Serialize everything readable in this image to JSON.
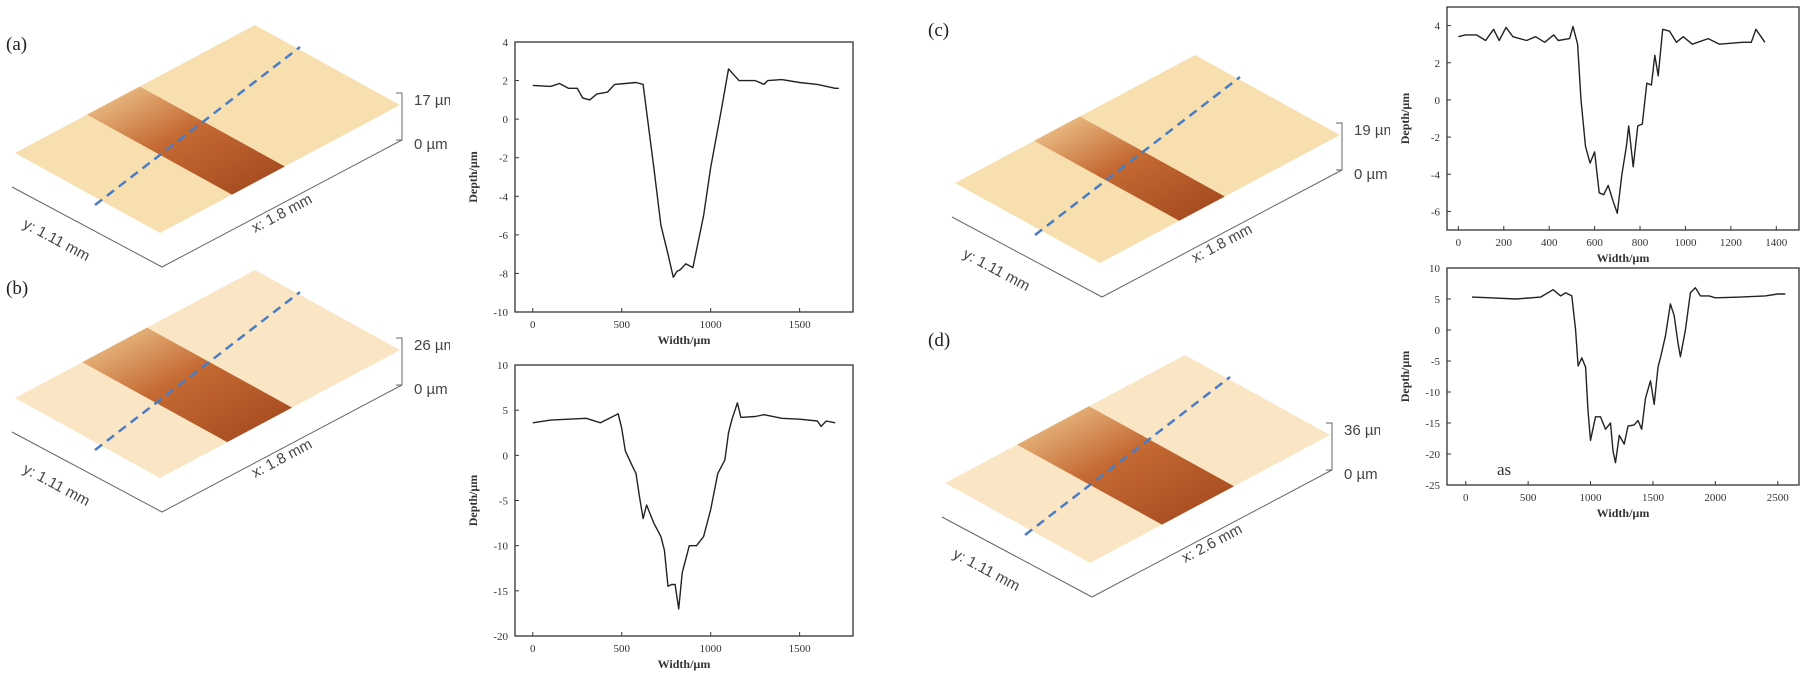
{
  "panels": [
    {
      "label": "(a)",
      "z_max": "17 µm",
      "z_min": "0 µm",
      "x_axis": "x: 1.8 mm",
      "y_axis": "y: 1.11 mm"
    },
    {
      "label": "(b)",
      "z_max": "26 µm",
      "z_min": "0 µm",
      "x_axis": "x: 1.8 mm",
      "y_axis": "y: 1.11 mm"
    },
    {
      "label": "(c)",
      "z_max": "19 µm",
      "z_min": "0 µm",
      "x_axis": "x: 1.8 mm",
      "y_axis": "y: 1.11 mm"
    },
    {
      "label": "(d)",
      "z_max": "36 µm",
      "z_min": "0 µm",
      "x_axis": "x: 2.6 mm",
      "y_axis": "y: 1.11 mm"
    }
  ],
  "colors": {
    "surface_light": "#f8dfb0",
    "groove_dark": "#a0451c",
    "profile_line": "#4a7cc4",
    "trace": "#222222"
  },
  "chart_data": [
    {
      "type": "line",
      "panel": "(a)",
      "xlabel": "Width/µm",
      "ylabel": "Depth/µm",
      "xlim": [
        -100,
        1800
      ],
      "ylim": [
        -10,
        4
      ],
      "xticks": [
        0,
        500,
        1000,
        1500
      ],
      "yticks": [
        -10,
        -8,
        -6,
        -4,
        -2,
        0,
        2,
        4
      ],
      "x": [
        0,
        100,
        150,
        200,
        250,
        280,
        320,
        360,
        420,
        460,
        520,
        580,
        620,
        680,
        720,
        760,
        790,
        810,
        830,
        860,
        900,
        960,
        1000,
        1060,
        1100,
        1130,
        1160,
        1250,
        1300,
        1320,
        1400,
        1500,
        1600,
        1700,
        1720
      ],
      "y": [
        1.75,
        1.7,
        1.85,
        1.6,
        1.6,
        1.1,
        1.0,
        1.3,
        1.4,
        1.8,
        1.85,
        1.9,
        1.8,
        -2.5,
        -5.5,
        -7,
        -8.2,
        -7.9,
        -7.8,
        -7.5,
        -7.7,
        -5,
        -2.5,
        0.5,
        2.6,
        2.3,
        2.0,
        2.0,
        1.8,
        2.0,
        2.05,
        1.9,
        1.8,
        1.6,
        1.6
      ]
    },
    {
      "type": "line",
      "panel": "(b)",
      "xlabel": "Width/µm",
      "ylabel": "Depth/µm",
      "xlim": [
        -100,
        1800
      ],
      "ylim": [
        -20,
        10
      ],
      "xticks": [
        0,
        500,
        1000,
        1500
      ],
      "yticks": [
        -20,
        -15,
        -10,
        -5,
        0,
        5,
        10
      ],
      "x": [
        0,
        100,
        200,
        300,
        380,
        460,
        480,
        500,
        520,
        560,
        580,
        600,
        620,
        640,
        680,
        720,
        740,
        760,
        780,
        800,
        820,
        840,
        880,
        920,
        960,
        1000,
        1040,
        1080,
        1100,
        1120,
        1150,
        1170,
        1250,
        1300,
        1400,
        1500,
        1600,
        1620,
        1650,
        1700
      ],
      "y": [
        3.6,
        3.9,
        4.0,
        4.1,
        3.6,
        4.4,
        4.6,
        3,
        0.5,
        -1.2,
        -2,
        -4.6,
        -7,
        -5.5,
        -7.5,
        -9,
        -10.5,
        -14.5,
        -14.3,
        -14.3,
        -17,
        -13,
        -10,
        -10,
        -9,
        -6,
        -2,
        -0.5,
        2.5,
        4,
        5.8,
        4.2,
        4.3,
        4.5,
        4.1,
        4.0,
        3.8,
        3.2,
        3.8,
        3.6
      ]
    },
    {
      "type": "line",
      "panel": "(c)",
      "xlabel": "Width/µm",
      "ylabel": "Depth/µm",
      "xlim": [
        -50,
        1500
      ],
      "ylim": [
        -7,
        5
      ],
      "xticks": [
        0,
        200,
        400,
        600,
        800,
        1000,
        1200,
        1400
      ],
      "yticks": [
        -6,
        -4,
        -2,
        0,
        2,
        4
      ],
      "x": [
        0,
        30,
        80,
        120,
        155,
        180,
        210,
        240,
        300,
        340,
        380,
        420,
        440,
        490,
        505,
        525,
        540,
        560,
        580,
        600,
        620,
        640,
        660,
        680,
        700,
        720,
        740,
        750,
        770,
        790,
        810,
        830,
        850,
        865,
        880,
        900,
        930,
        960,
        990,
        1030,
        1100,
        1150,
        1250,
        1290,
        1310,
        1350
      ],
      "y": [
        3.4,
        3.5,
        3.5,
        3.2,
        3.8,
        3.2,
        3.9,
        3.4,
        3.2,
        3.4,
        3.1,
        3.5,
        3.2,
        3.3,
        3.95,
        3,
        0,
        -2.5,
        -3.4,
        -2.8,
        -5,
        -5.1,
        -4.6,
        -5.4,
        -6.1,
        -4,
        -2.5,
        -1.4,
        -3.6,
        -1.4,
        -1.3,
        0.9,
        0.8,
        2.4,
        1.3,
        3.8,
        3.7,
        3.1,
        3.4,
        3.0,
        3.3,
        3.0,
        3.1,
        3.1,
        3.8,
        3.1
      ]
    },
    {
      "type": "line",
      "panel": "(d)",
      "xlabel": "Width/µm",
      "ylabel": "Depth/µm",
      "annotation": "as",
      "xlim": [
        -150,
        2670
      ],
      "ylim": [
        -25,
        10
      ],
      "xticks": [
        0,
        500,
        1000,
        1500,
        2000,
        2500
      ],
      "yticks": [
        -25,
        -20,
        -15,
        -10,
        -5,
        0,
        5,
        10
      ],
      "x": [
        50,
        200,
        400,
        600,
        700,
        760,
        800,
        850,
        880,
        900,
        930,
        960,
        980,
        1000,
        1040,
        1080,
        1120,
        1160,
        1180,
        1200,
        1230,
        1270,
        1300,
        1350,
        1380,
        1410,
        1440,
        1480,
        1510,
        1540,
        1560,
        1600,
        1640,
        1670,
        1700,
        1720,
        1760,
        1800,
        1840,
        1880,
        1950,
        2000,
        2200,
        2400,
        2500,
        2560
      ],
      "y": [
        5.3,
        5.2,
        5.0,
        5.3,
        6.5,
        5.5,
        6.0,
        5.5,
        0,
        -5.8,
        -4.5,
        -6,
        -13,
        -17.8,
        -14,
        -14,
        -16,
        -15,
        -19.5,
        -21.4,
        -17,
        -18.4,
        -15.5,
        -15.3,
        -14.6,
        -16,
        -11,
        -8.2,
        -12,
        -6,
        -4.5,
        -1,
        4.2,
        2.3,
        -2,
        -4.3,
        0,
        6,
        6.8,
        5.5,
        5.5,
        5.2,
        5.3,
        5.5,
        5.8,
        5.8
      ]
    }
  ]
}
